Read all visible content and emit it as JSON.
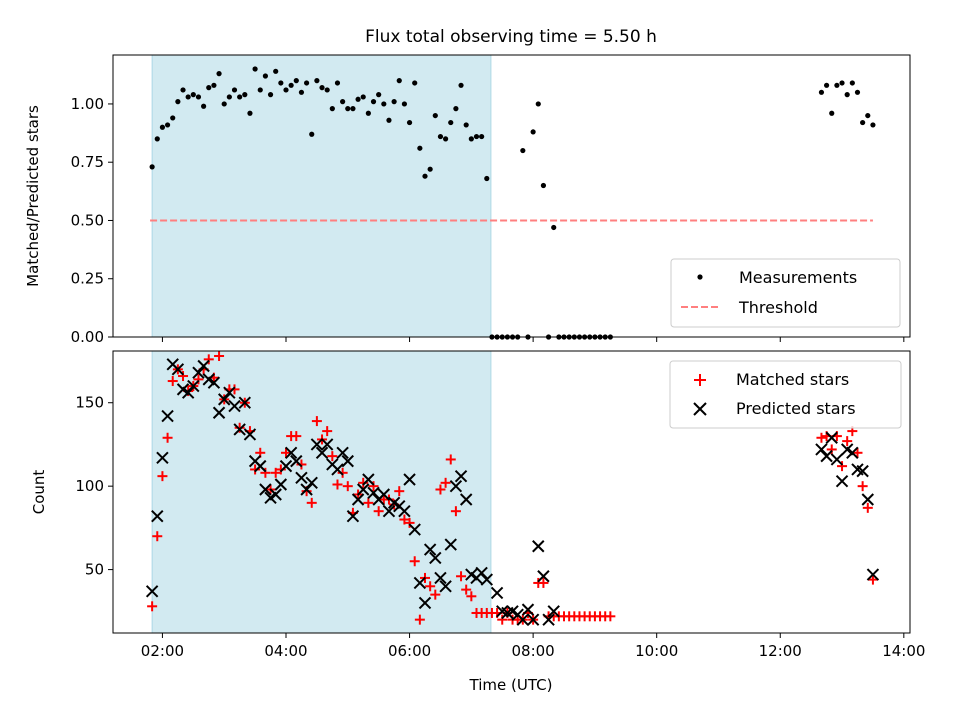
{
  "chart_data": [
    {
      "type": "scatter",
      "title": "Flux total observing time = 5.50 h",
      "xlabel": "",
      "ylabel": "Matched/Predicted stars",
      "xlim": [
        "01:12",
        "14:06"
      ],
      "ylim": [
        0,
        1.21
      ],
      "yticks": [
        "0.00",
        "0.25",
        "0.50",
        "0.75",
        "1.00"
      ],
      "shaded_span": [
        "01:50",
        "07:19"
      ],
      "legend_position": "lower-right",
      "colors": {
        "shade": "#add8e6",
        "measurements": "#000000",
        "threshold": "#ff7f7f"
      },
      "threshold": {
        "name": "Threshold",
        "value": 0.5,
        "x": [
          "01:48",
          "13:30"
        ]
      },
      "series": [
        {
          "name": "Measurements",
          "x": [
            "01:50",
            "01:55",
            "02:00",
            "02:05",
            "02:10",
            "02:15",
            "02:20",
            "02:25",
            "02:30",
            "02:35",
            "02:40",
            "02:45",
            "02:50",
            "02:55",
            "03:00",
            "03:05",
            "03:10",
            "03:15",
            "03:20",
            "03:25",
            "03:30",
            "03:35",
            "03:40",
            "03:45",
            "03:50",
            "03:55",
            "04:00",
            "04:05",
            "04:10",
            "04:15",
            "04:20",
            "04:25",
            "04:30",
            "04:35",
            "04:40",
            "04:45",
            "04:50",
            "04:55",
            "05:00",
            "05:05",
            "05:10",
            "05:15",
            "05:20",
            "05:25",
            "05:30",
            "05:35",
            "05:40",
            "05:45",
            "05:50",
            "05:55",
            "06:00",
            "06:05",
            "06:10",
            "06:15",
            "06:20",
            "06:25",
            "06:30",
            "06:35",
            "06:40",
            "06:45",
            "06:50",
            "06:55",
            "07:00",
            "07:05",
            "07:10",
            "07:15",
            "07:20",
            "07:25",
            "07:30",
            "07:35",
            "07:40",
            "07:45",
            "07:50",
            "07:55",
            "08:00",
            "08:05",
            "08:10",
            "08:15",
            "08:20",
            "08:25",
            "08:30",
            "08:35",
            "08:40",
            "08:45",
            "08:50",
            "08:55",
            "09:00",
            "09:05",
            "09:10",
            "09:15",
            "12:40",
            "12:45",
            "12:50",
            "12:55",
            "13:00",
            "13:05",
            "13:10",
            "13:15",
            "13:20",
            "13:25",
            "13:30"
          ],
          "y": [
            0.73,
            0.85,
            0.9,
            0.91,
            0.94,
            1.01,
            1.06,
            1.03,
            1.04,
            1.03,
            0.99,
            1.07,
            1.08,
            1.13,
            1.0,
            1.03,
            1.06,
            1.03,
            1.04,
            0.96,
            1.15,
            1.06,
            1.12,
            1.04,
            1.14,
            1.09,
            1.06,
            1.08,
            1.1,
            1.05,
            1.09,
            0.87,
            1.1,
            1.07,
            1.06,
            0.98,
            1.09,
            1.01,
            0.98,
            0.98,
            1.02,
            1.03,
            0.96,
            1.01,
            1.04,
            1.0,
            0.93,
            1.01,
            1.1,
            1.0,
            0.92,
            1.09,
            0.81,
            0.69,
            0.72,
            0.95,
            0.86,
            0.85,
            0.92,
            0.98,
            1.08,
            0.91,
            0.85,
            0.86,
            0.86,
            0.68,
            0.0,
            0.0,
            0.0,
            0.0,
            0.0,
            0.0,
            0.8,
            0.0,
            0.88,
            1.0,
            0.65,
            0.0,
            0.47,
            0.0,
            0.0,
            0.0,
            0.0,
            0.0,
            0.0,
            0.0,
            0.0,
            0.0,
            0.0,
            0.0,
            1.05,
            1.08,
            0.96,
            1.08,
            1.09,
            1.04,
            1.09,
            1.05,
            0.92,
            0.95,
            0.91
          ]
        }
      ]
    },
    {
      "type": "scatter",
      "title": "",
      "xlabel": "Time (UTC)",
      "ylabel": "Count",
      "xlim": [
        "01:12",
        "14:06"
      ],
      "ylim": [
        12,
        181
      ],
      "yticks": [
        "50",
        "100",
        "150"
      ],
      "xticks": [
        "02:00",
        "04:00",
        "06:00",
        "08:00",
        "10:00",
        "12:00",
        "14:00"
      ],
      "shaded_span": [
        "01:50",
        "07:19"
      ],
      "legend_position": "upper-right",
      "colors": {
        "shade": "#add8e6",
        "matched": "#ff0000",
        "predicted": "#000000"
      },
      "series": [
        {
          "name": "Matched stars",
          "marker": "plus",
          "x": [
            "01:50",
            "01:55",
            "02:00",
            "02:05",
            "02:10",
            "02:15",
            "02:20",
            "02:25",
            "02:30",
            "02:35",
            "02:40",
            "02:45",
            "02:50",
            "02:55",
            "03:00",
            "03:05",
            "03:10",
            "03:15",
            "03:20",
            "03:25",
            "03:30",
            "03:35",
            "03:40",
            "03:45",
            "03:50",
            "03:55",
            "04:00",
            "04:05",
            "04:10",
            "04:15",
            "04:20",
            "04:25",
            "04:30",
            "04:35",
            "04:40",
            "04:45",
            "04:50",
            "04:55",
            "05:00",
            "05:05",
            "05:10",
            "05:15",
            "05:20",
            "05:25",
            "05:30",
            "05:35",
            "05:40",
            "05:45",
            "05:50",
            "05:55",
            "06:00",
            "06:05",
            "06:10",
            "06:15",
            "06:20",
            "06:25",
            "06:30",
            "06:35",
            "06:40",
            "06:45",
            "06:50",
            "06:55",
            "07:00",
            "07:05",
            "07:10",
            "07:15",
            "07:20",
            "07:25",
            "07:30",
            "07:35",
            "07:40",
            "07:45",
            "07:50",
            "07:55",
            "08:00",
            "08:05",
            "08:10",
            "08:15",
            "08:20",
            "08:25",
            "08:30",
            "08:35",
            "08:40",
            "08:45",
            "08:50",
            "08:55",
            "09:00",
            "09:05",
            "09:10",
            "09:15",
            "12:40",
            "12:45",
            "12:50",
            "12:55",
            "13:00",
            "13:05",
            "13:10",
            "13:15",
            "13:20",
            "13:25",
            "13:30"
          ],
          "y": [
            28,
            70,
            106,
            129,
            163,
            170,
            166,
            157,
            160,
            164,
            170,
            176,
            165,
            178,
            152,
            158,
            158,
            135,
            150,
            133,
            110,
            120,
            108,
            98,
            108,
            110,
            120,
            130,
            130,
            113,
            97,
            90,
            139,
            128,
            133,
            118,
            101,
            108,
            100,
            84,
            95,
            102,
            90,
            100,
            85,
            92,
            92,
            89,
            97,
            80,
            78,
            55,
            20,
            45,
            40,
            35,
            98,
            102,
            116,
            85,
            46,
            38,
            34,
            24,
            24,
            24,
            24,
            24,
            20,
            24,
            20,
            20,
            20,
            24,
            20,
            42,
            42,
            22,
            22,
            22,
            22,
            22,
            22,
            22,
            22,
            22,
            22,
            22,
            22,
            22,
            129,
            130,
            122,
            130,
            112,
            127,
            133,
            120,
            100,
            87,
            44
          ]
        },
        {
          "name": "Predicted stars",
          "marker": "x",
          "x": [
            "01:50",
            "01:55",
            "02:00",
            "02:05",
            "02:10",
            "02:15",
            "02:20",
            "02:25",
            "02:30",
            "02:35",
            "02:40",
            "02:45",
            "02:50",
            "02:55",
            "03:00",
            "03:05",
            "03:10",
            "03:15",
            "03:20",
            "03:25",
            "03:30",
            "03:35",
            "03:40",
            "03:45",
            "03:50",
            "03:55",
            "04:00",
            "04:05",
            "04:10",
            "04:15",
            "04:20",
            "04:25",
            "04:30",
            "04:35",
            "04:40",
            "04:45",
            "04:50",
            "04:55",
            "05:00",
            "05:05",
            "05:10",
            "05:15",
            "05:20",
            "05:25",
            "05:30",
            "05:35",
            "05:40",
            "05:45",
            "05:50",
            "05:55",
            "06:00",
            "06:05",
            "06:10",
            "06:15",
            "06:20",
            "06:25",
            "06:30",
            "06:35",
            "06:40",
            "06:45",
            "06:50",
            "06:55",
            "07:00",
            "07:05",
            "07:10",
            "07:15",
            "07:25",
            "07:30",
            "07:35",
            "07:40",
            "07:45",
            "07:50",
            "07:55",
            "08:00",
            "08:05",
            "08:10",
            "08:15",
            "08:20",
            "12:40",
            "12:45",
            "12:50",
            "12:55",
            "13:00",
            "13:05",
            "13:10",
            "13:15",
            "13:20",
            "13:25",
            "13:30"
          ],
          "y": [
            37,
            82,
            117,
            142,
            173,
            170,
            158,
            156,
            160,
            168,
            172,
            164,
            162,
            144,
            152,
            156,
            148,
            134,
            150,
            131,
            115,
            112,
            98,
            93,
            95,
            101,
            112,
            120,
            115,
            105,
            98,
            102,
            125,
            120,
            125,
            113,
            110,
            120,
            115,
            82,
            92,
            98,
            104,
            96,
            92,
            95,
            85,
            90,
            88,
            85,
            104,
            74,
            42,
            30,
            62,
            57,
            45,
            40,
            65,
            100,
            106,
            92,
            47,
            45,
            48,
            44,
            36,
            25,
            24,
            25,
            23,
            20,
            26,
            20,
            64,
            46,
            20,
            25,
            122,
            118,
            129,
            116,
            103,
            122,
            120,
            110,
            109,
            92,
            47
          ]
        }
      ]
    }
  ]
}
